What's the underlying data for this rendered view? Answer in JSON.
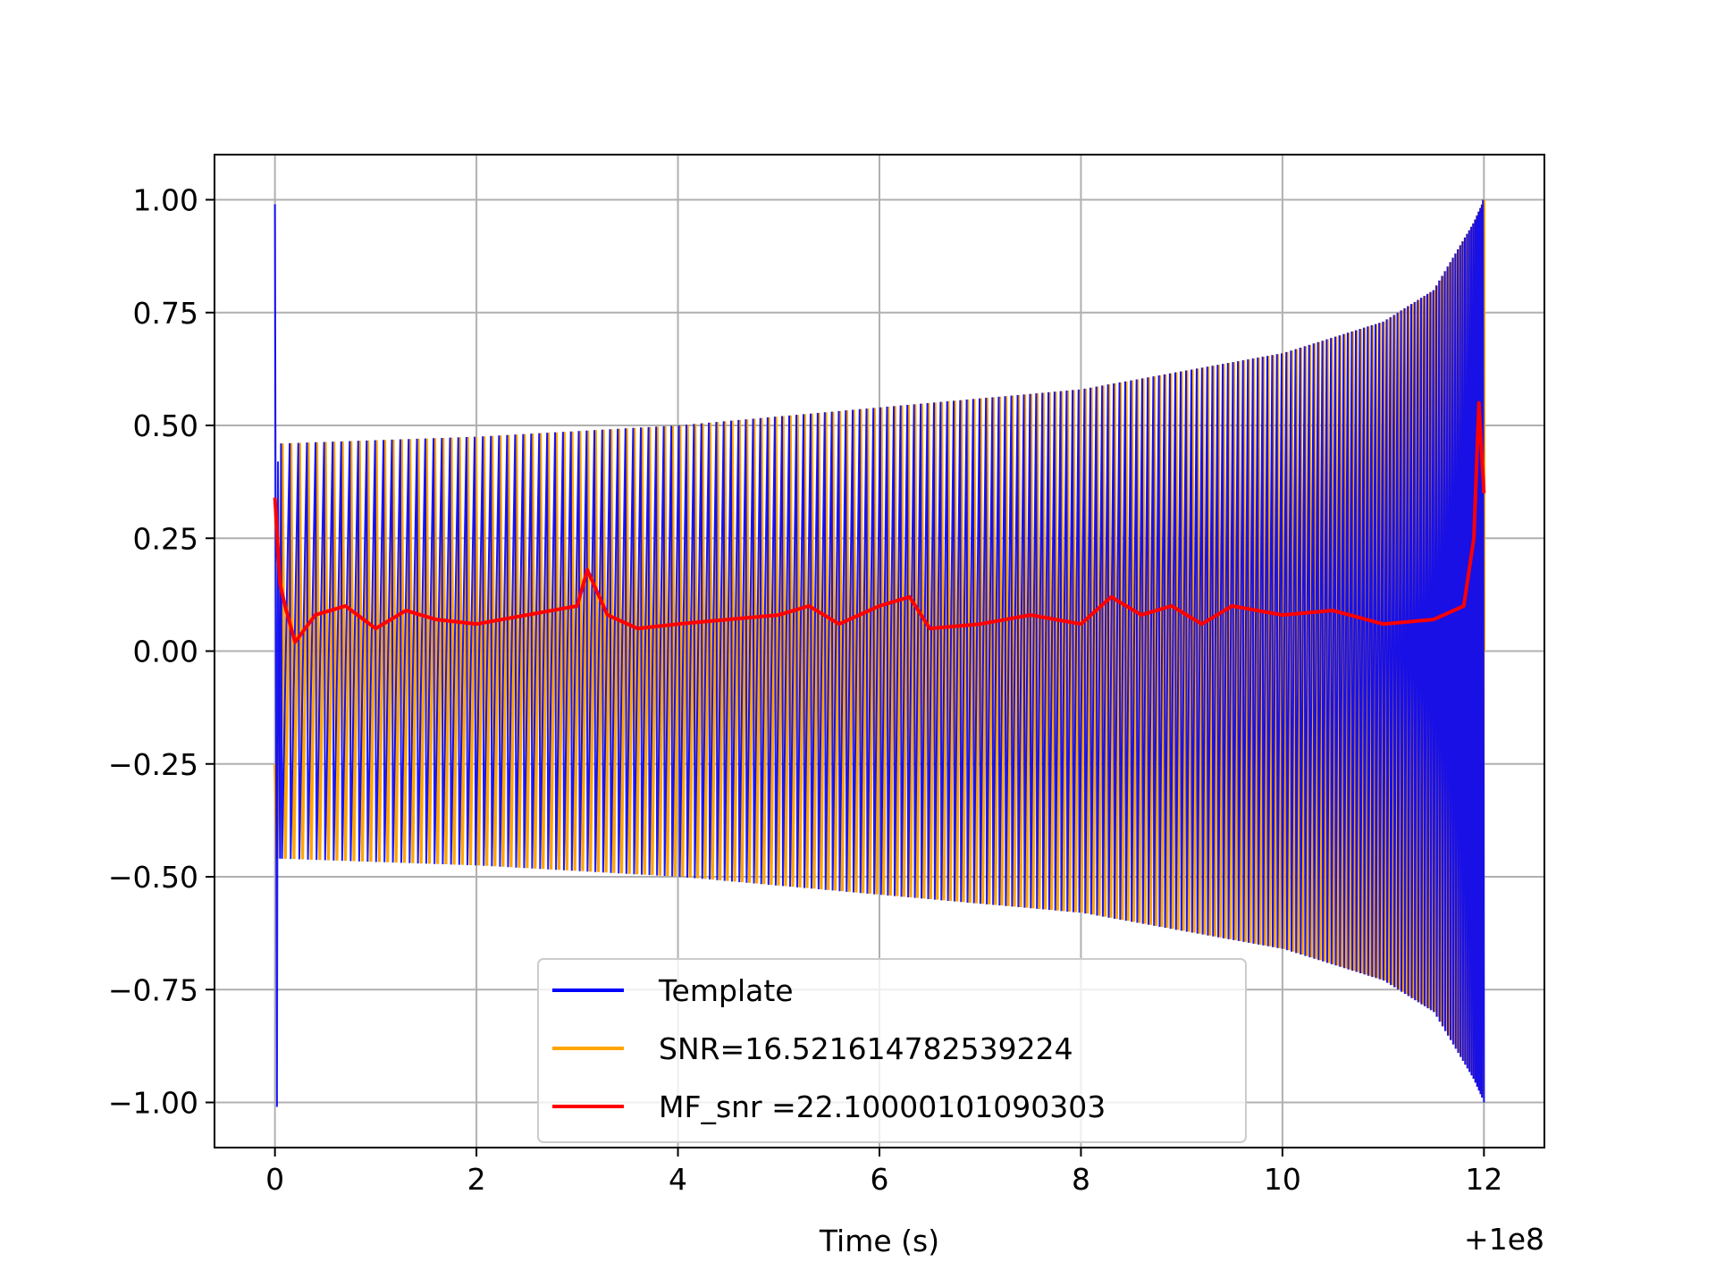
{
  "chart_data": {
    "type": "line",
    "title": "",
    "xlabel": "Time (s)",
    "ylabel": "",
    "x_offset_label": "+1e8",
    "xlim": [
      -0.6,
      12.6
    ],
    "ylim": [
      -1.1,
      1.1
    ],
    "grid": true,
    "legend_placement": "lower-center",
    "x_ticks": [
      0,
      2,
      4,
      6,
      8,
      10,
      12
    ],
    "x_tick_labels": [
      "0",
      "2",
      "4",
      "6",
      "8",
      "10",
      "12"
    ],
    "y_ticks": [
      1.0,
      0.75,
      0.5,
      0.25,
      0.0,
      -0.25,
      -0.5,
      -0.75,
      -1.0
    ],
    "y_tick_labels": [
      "1.00",
      "0.75",
      "0.50",
      "0.25",
      "0.00",
      "−0.25",
      "−0.50",
      "−0.75",
      "−1.00"
    ],
    "series": [
      {
        "name": "Template",
        "color": "#0000ff",
        "description_values": {
          "x_start": 0.0,
          "x_end": 12.0,
          "initial_spike_max": 0.99,
          "initial_spike_min": -1.01,
          "envelope_amplitude_x": [
            0.05,
            2,
            4,
            6,
            8,
            10,
            11,
            11.5,
            11.9,
            12.0
          ],
          "envelope_amplitude_y": [
            0.46,
            0.475,
            0.5,
            0.54,
            0.58,
            0.66,
            0.73,
            0.8,
            0.95,
            1.0
          ]
        }
      },
      {
        "name": "SNR=16.521614782539224",
        "color": "#ffa500",
        "description_values": {
          "x_start": 0.0,
          "x_end": 12.0,
          "envelope_amplitude_x": [
            0.05,
            2,
            4,
            6,
            8,
            10,
            11,
            11.5,
            11.9,
            12.0
          ],
          "envelope_amplitude_y": [
            0.46,
            0.475,
            0.5,
            0.54,
            0.58,
            0.66,
            0.73,
            0.8,
            0.95,
            1.0
          ]
        }
      },
      {
        "name": "MF_snr =22.10000101090303",
        "color": "#ff0000",
        "x": [
          0.0,
          0.05,
          0.1,
          0.2,
          0.4,
          0.7,
          1.0,
          1.3,
          1.6,
          2.0,
          2.5,
          3.0,
          3.1,
          3.3,
          3.6,
          4.0,
          4.5,
          5.0,
          5.3,
          5.6,
          6.0,
          6.3,
          6.5,
          7.0,
          7.5,
          8.0,
          8.3,
          8.6,
          8.9,
          9.2,
          9.5,
          10.0,
          10.5,
          11.0,
          11.5,
          11.8,
          11.9,
          11.95,
          12.0
        ],
        "y": [
          0.34,
          0.15,
          0.1,
          0.02,
          0.08,
          0.1,
          0.05,
          0.09,
          0.07,
          0.06,
          0.08,
          0.1,
          0.18,
          0.08,
          0.05,
          0.06,
          0.07,
          0.08,
          0.1,
          0.06,
          0.1,
          0.12,
          0.05,
          0.06,
          0.08,
          0.06,
          0.12,
          0.08,
          0.1,
          0.06,
          0.1,
          0.08,
          0.09,
          0.06,
          0.07,
          0.1,
          0.25,
          0.55,
          0.35
        ]
      }
    ],
    "legend": [
      {
        "label": "Template",
        "color": "#0000ff"
      },
      {
        "label": "SNR=16.521614782539224",
        "color": "#ffa500"
      },
      {
        "label": "MF_snr =22.10000101090303",
        "color": "#ff0000"
      }
    ]
  }
}
